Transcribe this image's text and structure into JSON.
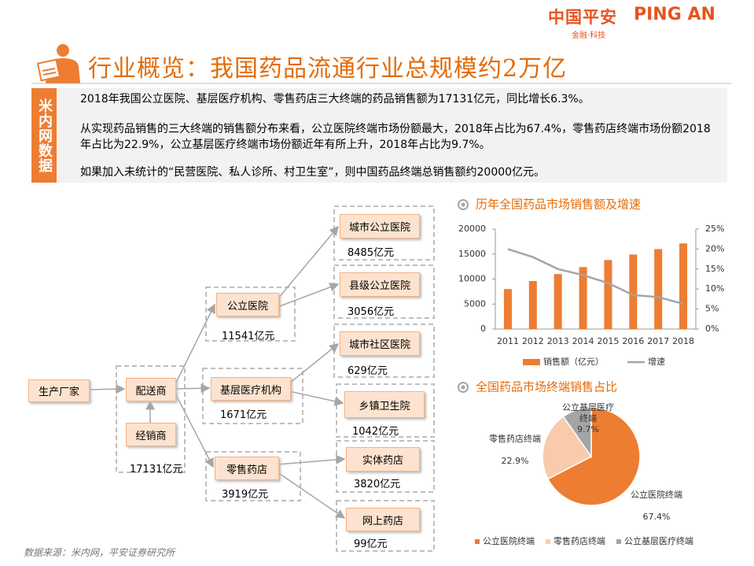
{
  "header": {
    "logo_cn": "中国平安",
    "logo_en": "PING AN",
    "slogan": "金融·科技",
    "title": "行业概览：我国药品流通行业总规模约2万亿"
  },
  "sidebar": {
    "label": "米内网数据"
  },
  "bullets": [
    "2018年我国公立医院、基层医疗机构、零售药店三大终端的药品销售额为17131亿元，同比增长6.3%。",
    "从实现药品销售的三大终端的销售额分布来看，公立医院终端市场份额最大，2018年占比为67.4%，零售药店终端市场份额2018年占比为22.9%，公立基层医疗终端市场份额近年有所上升，2018年占比为9.7%。",
    "如果加入未统计的“民营医院、私人诊所、村卫生室”，则中国药品终端总销售额约20000亿元。"
  ],
  "diagram": {
    "distribution_total": "17131亿元",
    "nodes": [
      {
        "label": "生产厂家"
      },
      {
        "label": "配送商"
      },
      {
        "label": "经销商"
      },
      {
        "label": "公立医院",
        "value": "11541亿元"
      },
      {
        "label": "基层医疗机构",
        "value": "1671亿元"
      },
      {
        "label": "零售药店",
        "value": "3919亿元"
      },
      {
        "label": "城市公立医院",
        "value": "8485亿元"
      },
      {
        "label": "县级公立医院",
        "value": "3056亿元"
      },
      {
        "label": "城市社区医院",
        "value": "629亿元"
      },
      {
        "label": "乡镇卫生院",
        "value": "1042亿元"
      },
      {
        "label": "实体药店",
        "value": "3820亿元"
      },
      {
        "label": "网上药店",
        "value": "99亿元"
      }
    ]
  },
  "source": "数据来源：米内网，平安证券研究所",
  "chart_data": [
    {
      "type": "bar",
      "title": "历年全国药品市场销售额及增速",
      "categories": [
        "2011",
        "2012",
        "2013",
        "2014",
        "2015",
        "2016",
        "2017",
        "2018"
      ],
      "series": [
        {
          "name": "销售额（亿元）",
          "color": "#ed7d31",
          "values": [
            8000,
            9600,
            11000,
            12400,
            13800,
            14900,
            16000,
            17131
          ]
        },
        {
          "name": "增速",
          "type": "line",
          "axis": "y2",
          "color": "#a5a5a5",
          "values": [
            20,
            18,
            15,
            13.5,
            11.5,
            8.5,
            8,
            6.3
          ]
        }
      ],
      "ylim": [
        0,
        20000
      ],
      "yticks": [
        0,
        5000,
        10000,
        15000,
        20000
      ],
      "y2lim": [
        0,
        25
      ],
      "y2ticks": [
        {
          "value": 0,
          "label": "0%"
        },
        {
          "value": 5,
          "label": "5%"
        },
        {
          "value": 10,
          "label": "10%"
        },
        {
          "value": 15,
          "label": "15%"
        },
        {
          "value": 20,
          "label": "20%"
        },
        {
          "value": 25,
          "label": "25%"
        }
      ],
      "legend": "bottom"
    },
    {
      "type": "pie",
      "title": "全国药品市场终端销售占比",
      "categories": [
        "公立医院终端",
        "零售药店终端",
        "公立基层医疗终端"
      ],
      "values": [
        67.4,
        22.9,
        9.7
      ],
      "value_labels": [
        "67.4%",
        "22.9%",
        "9.7%"
      ],
      "colors": [
        "#ed7d31",
        "#f8cbad",
        "#a5a5a5"
      ],
      "legend": "bottom"
    }
  ]
}
